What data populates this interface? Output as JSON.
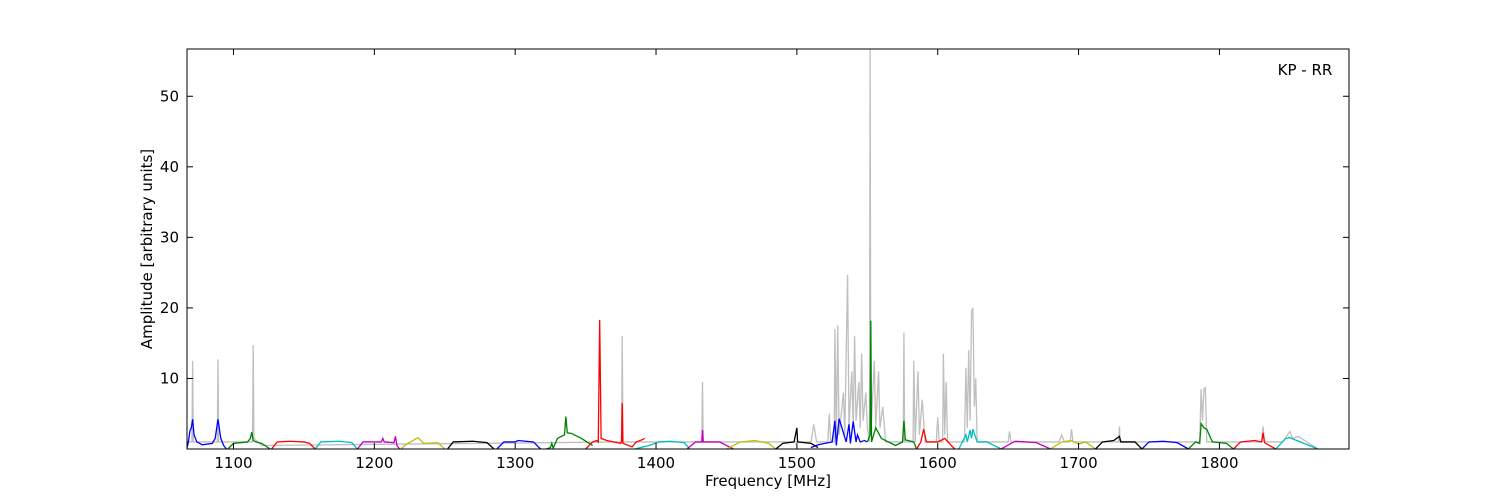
{
  "chart_data": {
    "type": "line",
    "annotation": "KP - RR",
    "x_label": "Frequency [MHz]",
    "y_label": "Amplitude [arbitrary units]",
    "xlim": [
      1067,
      1892
    ],
    "ylim": [
      0,
      56.7
    ],
    "xticks": [
      1100,
      1200,
      1300,
      1400,
      1500,
      1600,
      1700,
      1800
    ],
    "yticks": [
      10,
      20,
      30,
      40,
      50
    ],
    "grid": false,
    "series": [
      {
        "color": "#bfbfbf",
        "x": [
          1067,
          1070.5,
          1071,
          1071.5,
          1088.5,
          1089,
          1089.5,
          1113.5,
          1114,
          1114.5,
          1120,
          1375.5,
          1376,
          1376.5,
          1432.5,
          1433,
          1433.5,
          1510,
          1512,
          1514,
          1522,
          1523,
          1524,
          1526.5,
          1527,
          1528,
          1529,
          1530,
          1533,
          1534,
          1536,
          1537,
          1539,
          1540,
          1541,
          1542,
          1544,
          1545,
          1546,
          1547,
          1549,
          1550,
          1551.5,
          1552,
          1552.5,
          1555,
          1556,
          1558,
          1559,
          1561,
          1563,
          1575.5,
          1576,
          1576.5,
          1582.5,
          1583,
          1584,
          1586,
          1587,
          1589,
          1591,
          1599,
          1600,
          1601,
          1603.5,
          1604,
          1605,
          1606,
          1607,
          1619,
          1620,
          1621,
          1622,
          1623,
          1624,
          1625,
          1626,
          1627,
          1628,
          1650,
          1651,
          1652,
          1686,
          1688,
          1690,
          1694,
          1695,
          1696,
          1728.5,
          1729,
          1729.5,
          1786,
          1787,
          1788,
          1789,
          1790,
          1791,
          1830,
          1831,
          1832,
          1845,
          1850,
          1852,
          1856,
          1870
        ],
        "values": [
          1,
          1,
          12.5,
          1,
          1,
          12.7,
          1,
          1,
          14.7,
          1.5,
          0.5,
          1,
          16,
          1,
          1,
          9.5,
          1,
          1,
          3.5,
          1,
          1,
          5,
          1,
          1,
          17,
          1,
          17.5,
          2,
          8,
          2,
          24.7,
          3,
          11,
          3,
          16,
          4,
          9.5,
          3,
          13.5,
          4,
          8,
          3,
          1,
          56.7,
          2,
          12.5,
          3,
          11,
          3,
          6,
          1,
          1,
          16.5,
          1,
          1,
          12.5,
          1,
          11,
          2,
          7,
          1,
          1,
          4.5,
          1,
          1,
          13.5,
          2,
          9.5,
          1,
          1,
          11.5,
          3,
          14,
          4,
          19.5,
          20,
          6,
          10,
          1,
          1,
          2.5,
          1,
          1,
          2,
          1,
          1,
          2.8,
          1,
          1,
          3.2,
          1,
          1,
          8.5,
          4,
          8.5,
          8.7,
          1,
          1,
          3.2,
          1,
          1,
          2.5,
          1.5,
          1.8,
          0
        ]
      },
      {
        "color": "#0000ff",
        "x": [
          1067,
          1068,
          1069,
          1070,
          1071,
          1072,
          1074,
          1078,
          1085,
          1087,
          1089,
          1091,
          1093,
          1095
        ],
        "values": [
          0.2,
          1,
          2.5,
          3,
          4.2,
          2,
          1,
          0.6,
          0.8,
          1.5,
          4.2,
          1.5,
          0.5,
          0
        ]
      },
      {
        "color": "#008000",
        "x": [
          1096,
          1100,
          1110,
          1112,
          1113,
          1114,
          1116,
          1120,
          1126
        ],
        "values": [
          0,
          0.8,
          1,
          1.5,
          2.4,
          1.2,
          1,
          0.8,
          0
        ]
      },
      {
        "color": "#ff0000",
        "x": [
          1127,
          1131,
          1140,
          1150,
          1154,
          1158
        ],
        "values": [
          0,
          1,
          1.1,
          1,
          0.8,
          0
        ]
      },
      {
        "color": "#00bfbf",
        "x": [
          1158,
          1162,
          1175,
          1184,
          1188
        ],
        "values": [
          0,
          1,
          1.1,
          0.9,
          0
        ]
      },
      {
        "color": "#bf00bf",
        "x": [
          1188,
          1192,
          1205,
          1206,
          1207,
          1214,
          1215,
          1216,
          1218
        ],
        "values": [
          0,
          1,
          1,
          1.5,
          1,
          0.9,
          1.8,
          0.5,
          0
        ]
      },
      {
        "color": "#bfbf00",
        "x": [
          1219,
          1223,
          1231,
          1235,
          1245,
          1250
        ],
        "values": [
          0,
          0.7,
          1.6,
          0.8,
          0.9,
          0
        ]
      },
      {
        "color": "#000000",
        "x": [
          1252,
          1256,
          1270,
          1280,
          1285
        ],
        "values": [
          0,
          1,
          1.1,
          0.9,
          0
        ]
      },
      {
        "color": "#0000ff",
        "x": [
          1287,
          1292,
          1300,
          1302,
          1313,
          1318
        ],
        "values": [
          0,
          1,
          1,
          1.2,
          1,
          0
        ]
      },
      {
        "color": "#008000",
        "x": [
          1322,
          1325,
          1326,
          1327,
          1330,
          1335,
          1336,
          1337,
          1340,
          1347,
          1355
        ],
        "values": [
          0,
          0.2,
          0.8,
          0.1,
          1.5,
          2,
          4.6,
          2.3,
          2.2,
          1.5,
          0.5
        ]
      },
      {
        "color": "#ff0000",
        "x": [
          1350,
          1355,
          1358,
          1359,
          1360,
          1361,
          1365,
          1375,
          1375.5,
          1376,
          1376.5,
          1383,
          1386,
          1390,
          1392
        ],
        "values": [
          0,
          1,
          1.2,
          1,
          18.3,
          1.5,
          1.2,
          0.8,
          1,
          6.5,
          0.8,
          0.3,
          1,
          1.3,
          1.5
        ]
      },
      {
        "color": "#00bfbf",
        "x": [
          1385,
          1395,
          1402,
          1410,
          1420,
          1424
        ],
        "values": [
          0,
          0.5,
          1,
          1.1,
          0.9,
          0
        ]
      },
      {
        "color": "#bf00bf",
        "x": [
          1422,
          1428,
          1432.5,
          1433,
          1433.5,
          1445,
          1455
        ],
        "values": [
          0,
          1,
          1,
          2.7,
          1,
          1,
          0
        ]
      },
      {
        "color": "#bfbf00",
        "x": [
          1450,
          1460,
          1470,
          1480,
          1485
        ],
        "values": [
          0,
          1,
          1.2,
          0.8,
          0
        ]
      },
      {
        "color": "#000000",
        "x": [
          1485,
          1490,
          1498,
          1500,
          1500.5,
          1510,
          1515
        ],
        "values": [
          0,
          0.8,
          1,
          3,
          1,
          0.8,
          0.2
        ]
      },
      {
        "color": "#0000ff",
        "x": [
          1510,
          1515,
          1525,
          1527,
          1528,
          1530,
          1535,
          1537,
          1538,
          1540,
          1542,
          1543,
          1545,
          1548,
          1550
        ],
        "values": [
          0.2,
          0.6,
          1,
          4,
          0.5,
          4.3,
          1,
          3.5,
          0.8,
          3.9,
          1,
          2,
          1,
          1.2,
          1
        ]
      },
      {
        "color": "#008000",
        "x": [
          1550,
          1552,
          1552.5,
          1553,
          1556,
          1560,
          1570,
          1575,
          1576,
          1577,
          1583,
          1585
        ],
        "values": [
          1,
          2,
          18.2,
          1,
          3,
          1.5,
          0.5,
          1,
          4,
          1.3,
          1,
          0
        ]
      },
      {
        "color": "#ff0000",
        "x": [
          1585,
          1588,
          1590,
          1592,
          1600,
          1605,
          1612
        ],
        "values": [
          0,
          1,
          2.8,
          1,
          1,
          1.5,
          0
        ]
      },
      {
        "color": "#00bfbf",
        "x": [
          1615,
          1620,
          1621,
          1623,
          1624,
          1625,
          1628,
          1635,
          1645
        ],
        "values": [
          0,
          2,
          1,
          2.7,
          1.5,
          2.8,
          1,
          1,
          0
        ]
      },
      {
        "color": "#bf00bf",
        "x": [
          1645,
          1655,
          1670,
          1680
        ],
        "values": [
          0,
          1.1,
          0.9,
          0
        ]
      },
      {
        "color": "#bfbf00",
        "x": [
          1680,
          1688,
          1695,
          1700,
          1705,
          1712
        ],
        "values": [
          0,
          1,
          1.2,
          0.7,
          1,
          0
        ]
      },
      {
        "color": "#000000",
        "x": [
          1712,
          1717,
          1725,
          1729,
          1730,
          1740,
          1745
        ],
        "values": [
          0,
          1,
          1.2,
          1.8,
          1,
          1,
          0
        ]
      },
      {
        "color": "#0000ff",
        "x": [
          1745,
          1750,
          1760,
          1770,
          1778
        ],
        "values": [
          0,
          1,
          1.1,
          0.9,
          0
        ]
      },
      {
        "color": "#008000",
        "x": [
          1778,
          1783,
          1786,
          1787,
          1789,
          1791,
          1795,
          1805,
          1810
        ],
        "values": [
          0,
          1,
          0.8,
          3.6,
          3,
          2.8,
          1,
          0.8,
          0
        ]
      },
      {
        "color": "#ff0000",
        "x": [
          1810,
          1815,
          1825,
          1830,
          1831,
          1832,
          1840
        ],
        "values": [
          0,
          1,
          1.2,
          1,
          2.3,
          0.9,
          0
        ]
      },
      {
        "color": "#00bfbf",
        "x": [
          1840,
          1847,
          1850,
          1860,
          1870
        ],
        "values": [
          0,
          1.5,
          1.6,
          0.8,
          0
        ]
      }
    ]
  }
}
